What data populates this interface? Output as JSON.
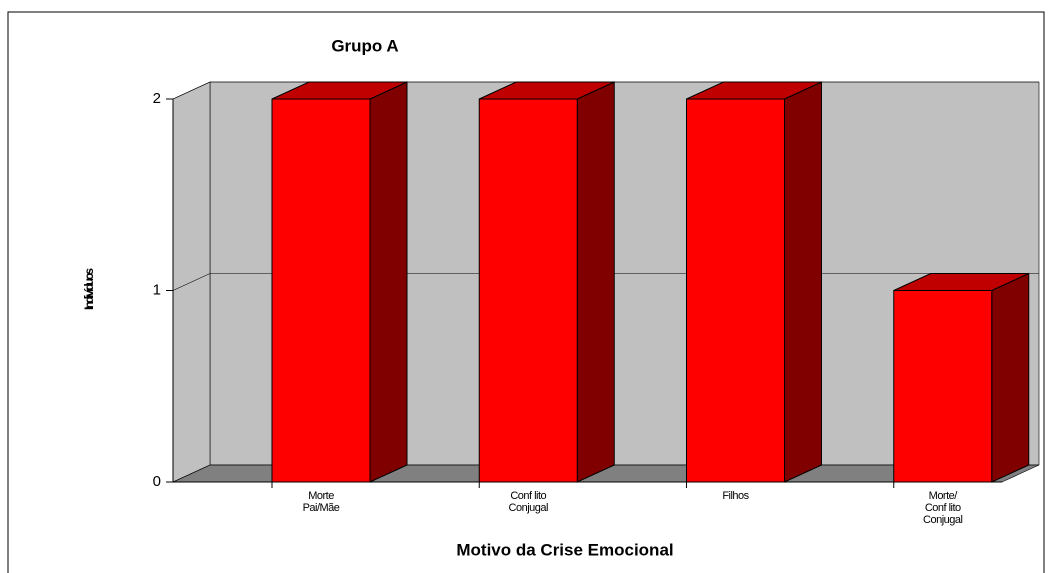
{
  "chart_data": {
    "type": "bar3d",
    "title": "Grupo A",
    "categories": [
      "Morte\nPai/Mãe",
      "Conf lito\nConjugal",
      "Filhos",
      "Morte/\nConf lito\nConjugal"
    ],
    "values": [
      2,
      2,
      2,
      1
    ],
    "color": "#ff0000",
    "ylim": [
      0,
      2
    ],
    "yticks": [
      0,
      1,
      2
    ],
    "grid": true,
    "ylabel": "Indivíduos",
    "xlabel": "Motivo da Crise Emocional"
  }
}
